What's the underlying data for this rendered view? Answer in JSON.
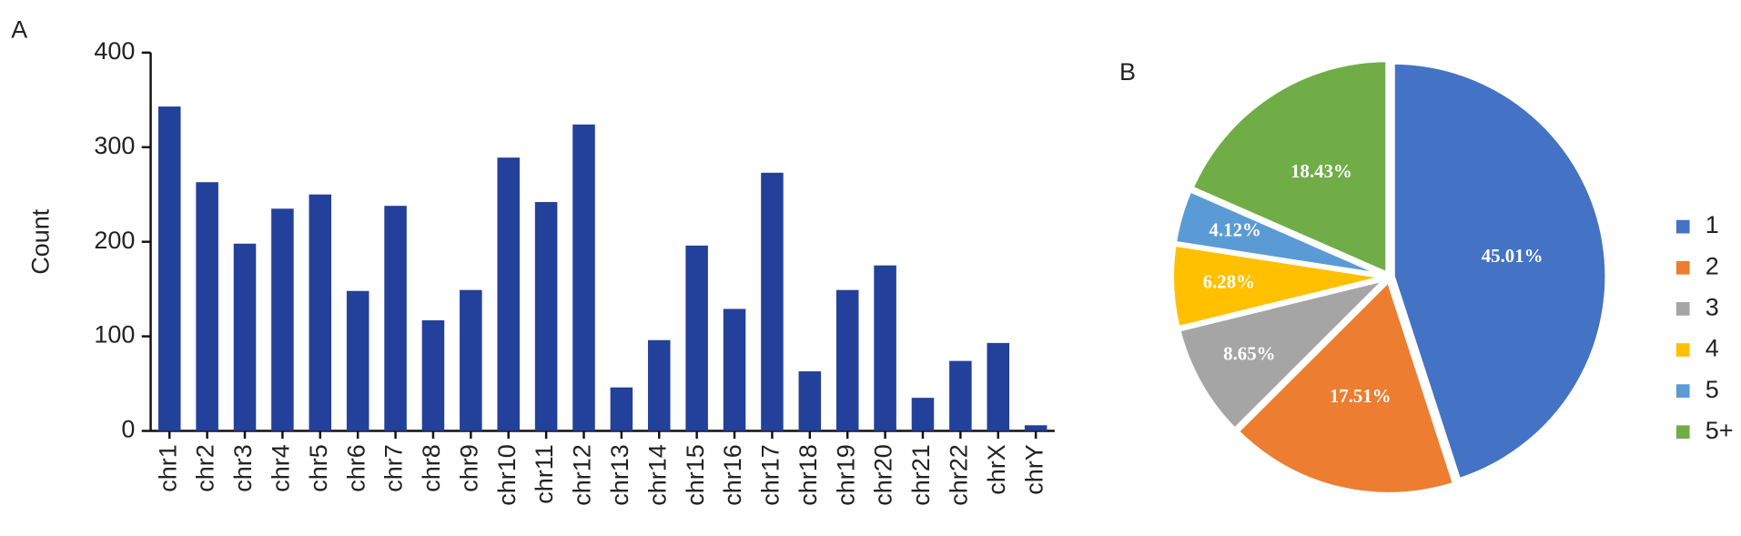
{
  "chart_data": [
    {
      "type": "bar",
      "panel": "A",
      "ylabel": "Count",
      "categories": [
        "chr1",
        "chr2",
        "chr3",
        "chr4",
        "chr5",
        "chr6",
        "chr7",
        "chr8",
        "chr9",
        "chr10",
        "chr11",
        "chr12",
        "chr13",
        "chr14",
        "chr15",
        "chr16",
        "chr17",
        "chr18",
        "chr19",
        "chr20",
        "chr21",
        "chr22",
        "chrX",
        "chrY"
      ],
      "values": [
        343,
        263,
        198,
        235,
        250,
        148,
        238,
        117,
        149,
        289,
        242,
        324,
        46,
        96,
        196,
        129,
        273,
        63,
        149,
        175,
        35,
        74,
        93,
        6
      ],
      "color": "#23409a",
      "ylim": [
        0,
        400
      ],
      "yticks": [
        0,
        100,
        200,
        300,
        400
      ]
    },
    {
      "type": "pie",
      "panel": "B",
      "categories": [
        "1",
        "2",
        "3",
        "4",
        "5",
        "5+"
      ],
      "values": [
        45.01,
        17.51,
        8.65,
        6.28,
        4.12,
        18.43
      ],
      "value_labels": [
        "45.01%",
        "17.51%",
        "8.65%",
        "6.28%",
        "4.12%",
        "18.43%"
      ],
      "colors": [
        "#4472c4",
        "#ed7d31",
        "#a5a5a5",
        "#ffc000",
        "#5b9bd5",
        "#70ad47"
      ],
      "legend": "right"
    }
  ]
}
